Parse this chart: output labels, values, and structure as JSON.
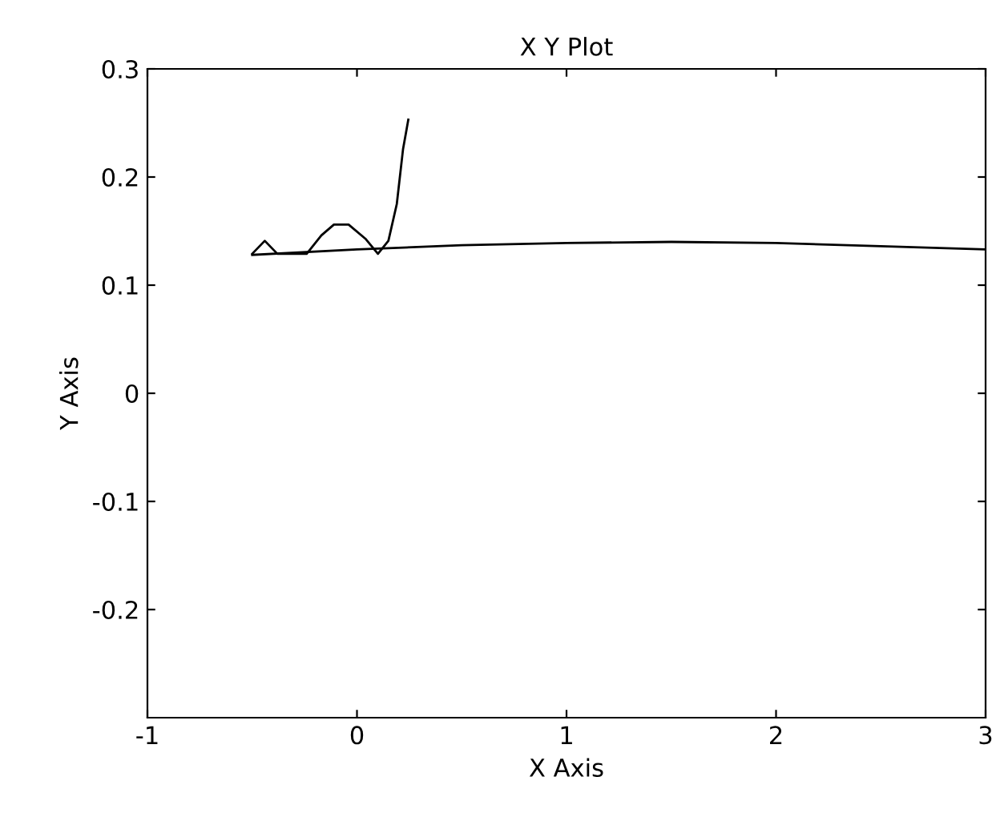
{
  "chart_data": {
    "type": "line",
    "title": "X Y Plot",
    "xlabel": "X Axis",
    "ylabel": "Y Axis",
    "series": [
      {
        "color": "#000000",
        "x": [
          -0.5,
          -0.44,
          -0.38,
          -0.24,
          -0.17,
          -0.11,
          -0.04,
          0.04,
          0.1,
          0.15,
          0.19,
          0.22,
          0.245
        ],
        "values": [
          0.129,
          0.141,
          0.129,
          0.129,
          0.146,
          0.156,
          0.156,
          0.143,
          0.129,
          0.141,
          0.175,
          0.226,
          0.253
        ]
      },
      {
        "color": "#000000",
        "x": [
          -0.5,
          0,
          0.5,
          1,
          1.5,
          2,
          2.5,
          3
        ],
        "values": [
          0.128,
          0.133,
          0.137,
          0.139,
          0.14,
          0.139,
          0.136,
          0.133
        ]
      }
    ],
    "xlim": [
      -1,
      3
    ],
    "ylim": [
      -0.3,
      0.3
    ],
    "xticks": [
      -1,
      0,
      1,
      2,
      3
    ],
    "yticks": [
      -0.2,
      -0.1,
      0,
      0.1,
      0.2,
      0.3
    ],
    "grid": false,
    "legend": false
  }
}
